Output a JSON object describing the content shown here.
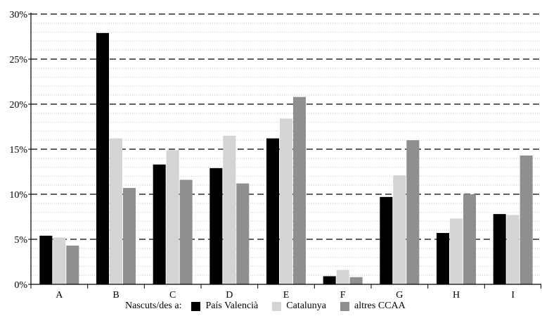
{
  "chart_data": {
    "type": "bar",
    "categories": [
      "A",
      "B",
      "C",
      "D",
      "E",
      "F",
      "G",
      "H",
      "I"
    ],
    "series": [
      {
        "name": "País Valencià",
        "color": "#000000",
        "values": [
          5.4,
          27.9,
          13.3,
          12.9,
          16.2,
          0.9,
          9.7,
          5.7,
          7.8
        ]
      },
      {
        "name": "Catalunya",
        "color": "#d4d4d4",
        "values": [
          5.2,
          16.2,
          14.9,
          16.5,
          18.4,
          1.6,
          12.1,
          7.3,
          7.7
        ]
      },
      {
        "name": "altres CCAA",
        "color": "#8f8f91",
        "values": [
          4.3,
          10.7,
          11.6,
          11.2,
          20.8,
          0.8,
          16.0,
          10.0,
          14.3
        ]
      }
    ],
    "ylim": [
      0,
      30
    ],
    "yticks": [
      0,
      5,
      10,
      15,
      20,
      25,
      30
    ],
    "ytick_labels": [
      "0%",
      "5%",
      "10%",
      "15%",
      "20%",
      "25%",
      "30%"
    ],
    "grid": "dashed major, dotted minor",
    "legend": {
      "title": "Nascuts/des a:",
      "position": "bottom"
    }
  }
}
